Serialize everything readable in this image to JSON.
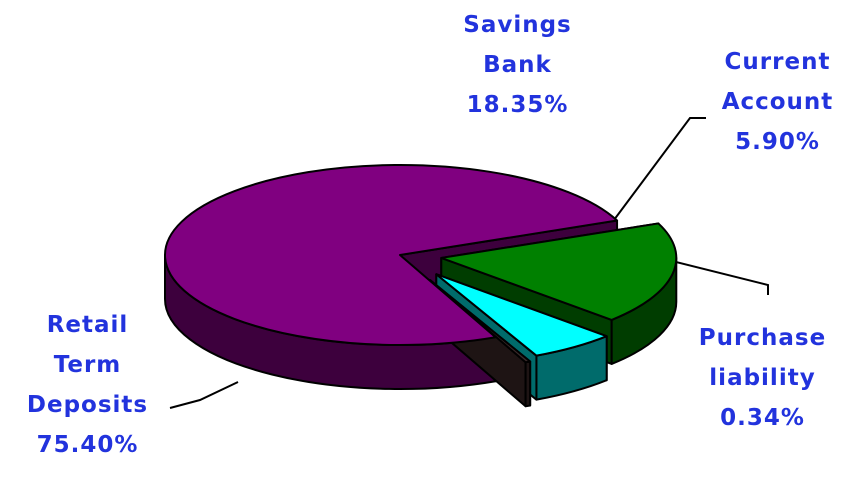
{
  "colors": {
    "label_text": "#2233dd",
    "slice_top": [
      "#800080",
      "#008000",
      "#00ffff",
      "#3a2a2a"
    ],
    "slice_side": [
      "#3d003d",
      "#003d00",
      "#006b6b",
      "#1e1414"
    ]
  },
  "chart_data": {
    "type": "pie",
    "title": "",
    "style": "3d-exploded",
    "legend": "none",
    "slices": [
      {
        "name_lines": [
          "Retail",
          "Term",
          "Deposits"
        ],
        "percent_label": "75.40%",
        "value": 75.4
      },
      {
        "name_lines": [
          "Savings",
          "Bank"
        ],
        "percent_label": "18.35%",
        "value": 18.35
      },
      {
        "name_lines": [
          "Current",
          "Account"
        ],
        "percent_label": "5.90%",
        "value": 5.9
      },
      {
        "name_lines": [
          "Purchase",
          "liability"
        ],
        "percent_label": "0.34%",
        "value": 0.34
      }
    ]
  }
}
